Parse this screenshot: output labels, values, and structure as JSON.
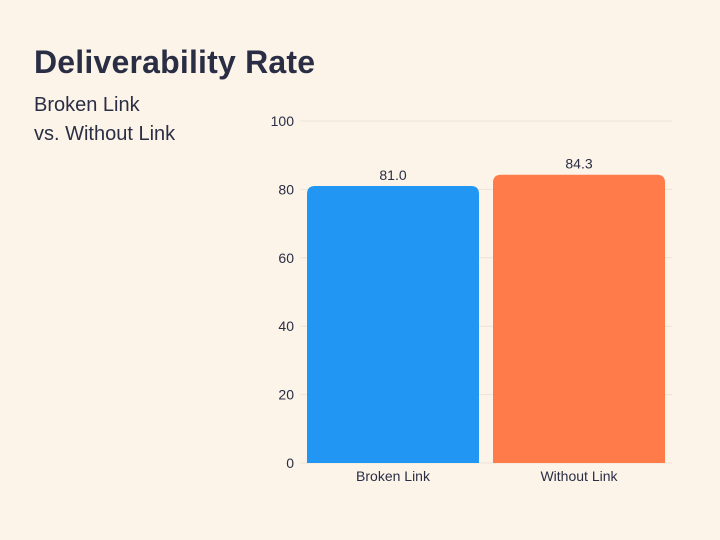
{
  "header": {
    "title": "Deliverability Rate",
    "subtitle_line1": "Broken Link",
    "subtitle_line2": "vs. Without Link"
  },
  "colors": {
    "background": "#fcf4e8",
    "grid": "#ece4d8",
    "text": "#2a2e45"
  },
  "chart_data": {
    "type": "bar",
    "categories": [
      "Broken Link",
      "Without Link"
    ],
    "values": [
      81.0,
      84.3
    ],
    "value_labels": [
      "81.0",
      "84.3"
    ],
    "bar_colors": [
      "#2196f3",
      "#ff7b4a"
    ],
    "ylim": [
      0,
      100
    ],
    "yticks": [
      0,
      20,
      40,
      60,
      80,
      100
    ],
    "grid": true,
    "legend": "none"
  }
}
